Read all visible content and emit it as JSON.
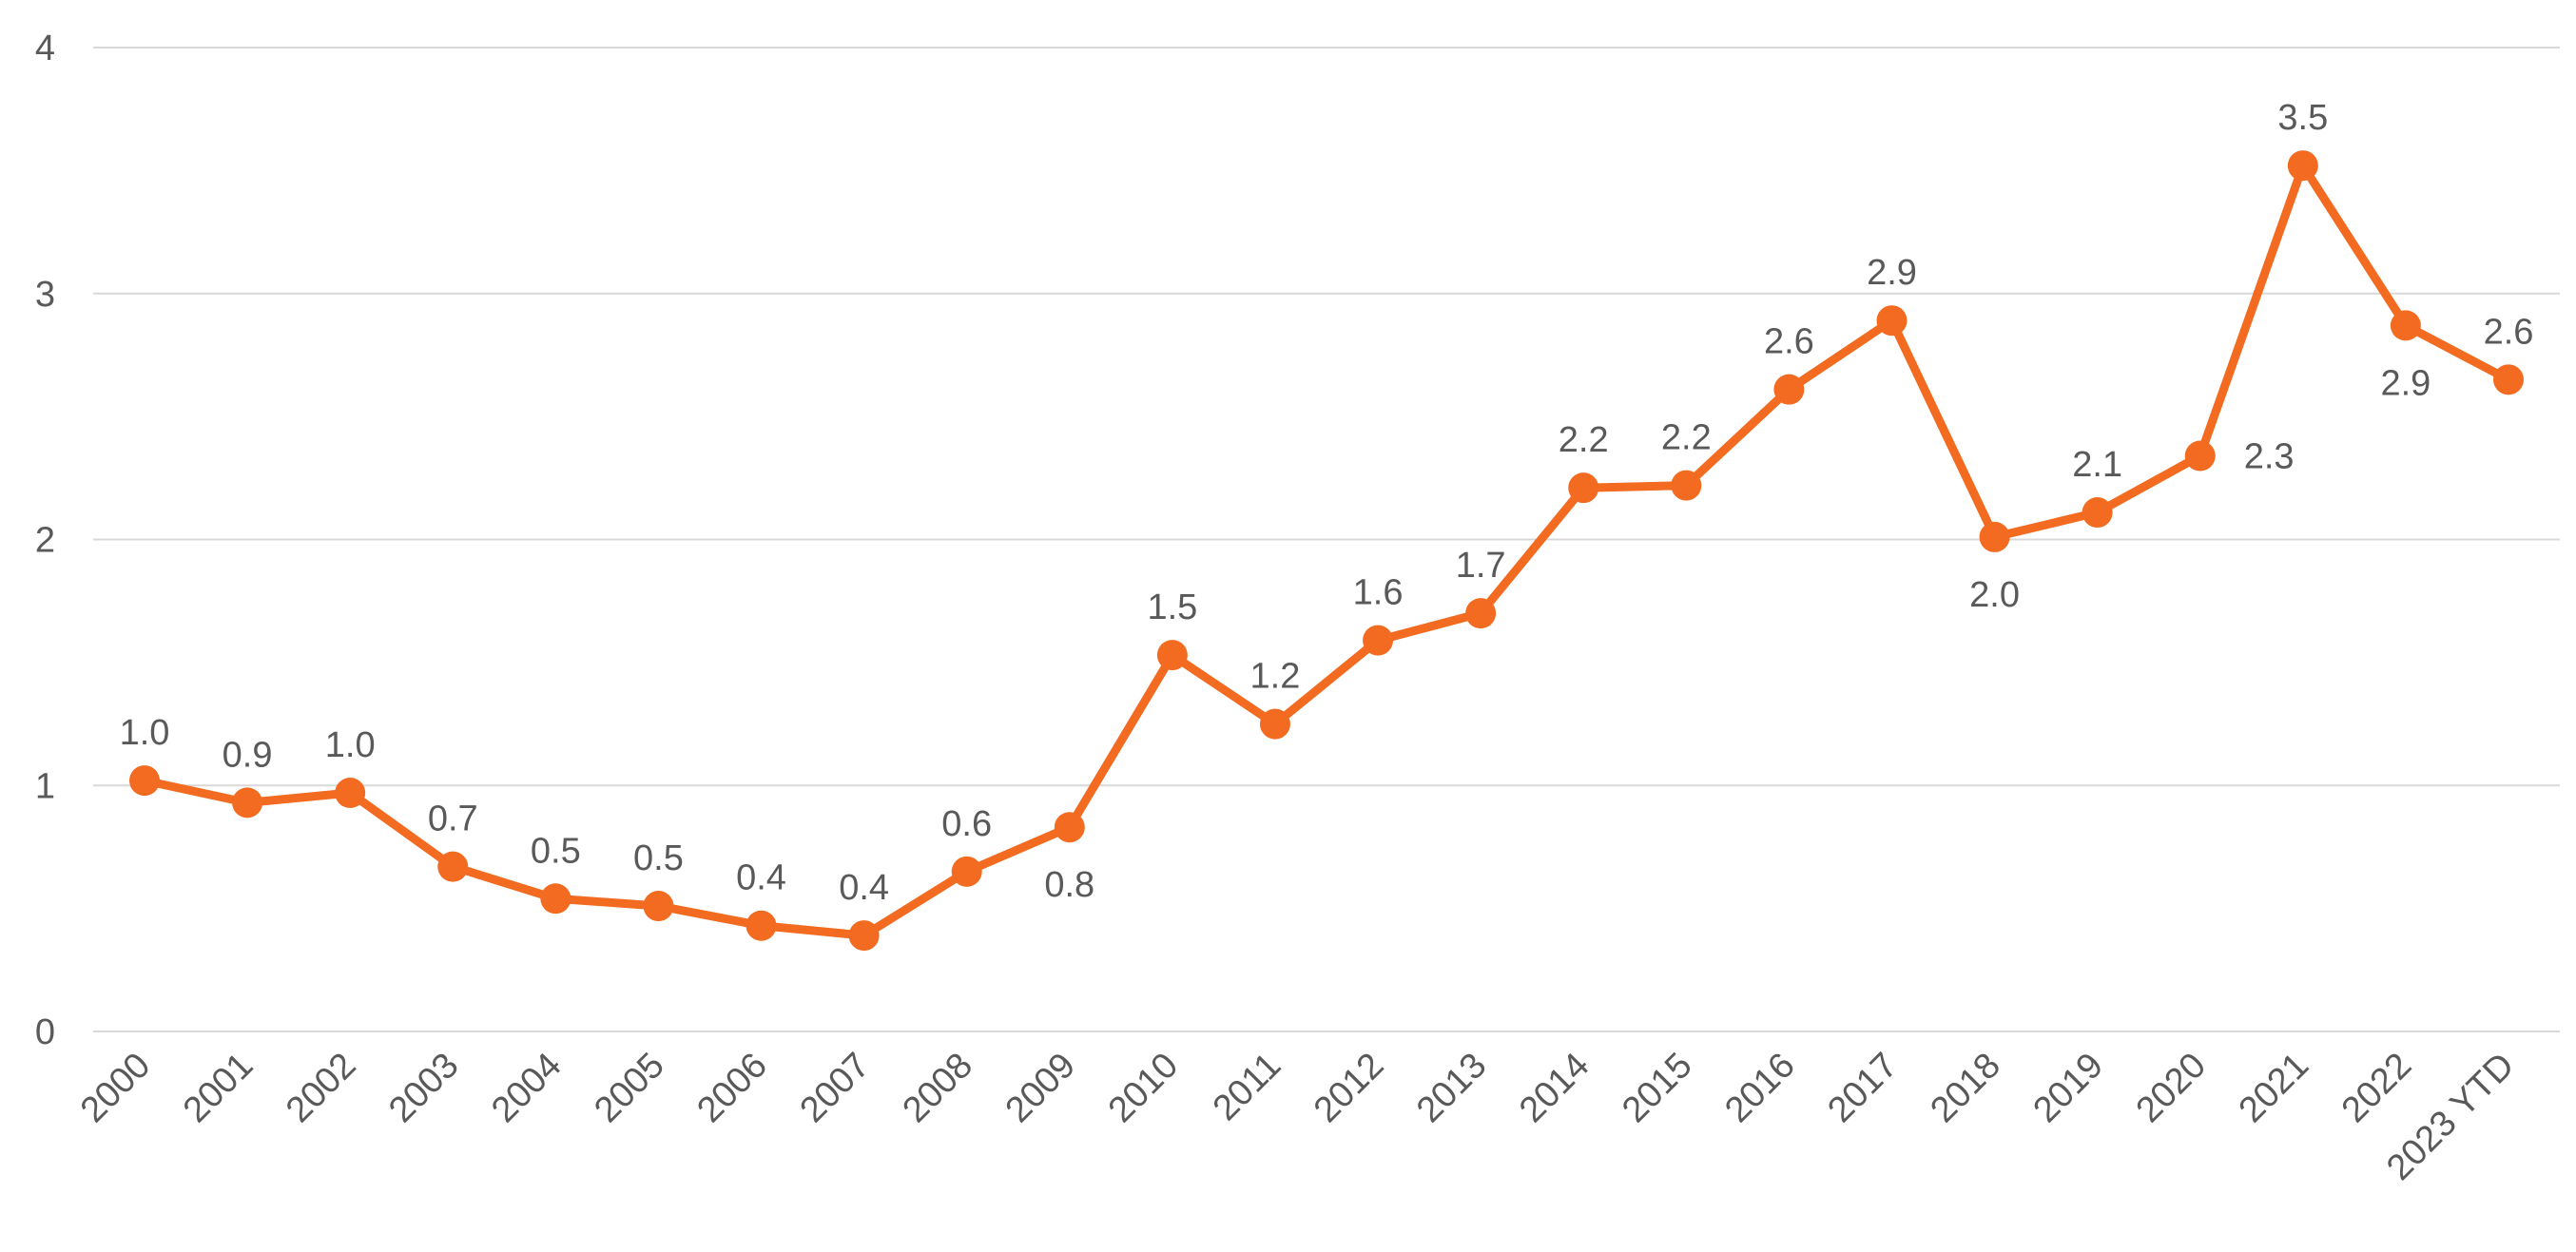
{
  "chart_data": {
    "type": "line",
    "title": "",
    "xlabel": "",
    "ylabel": "",
    "categories": [
      "2000",
      "2001",
      "2002",
      "2003",
      "2004",
      "2005",
      "2006",
      "2007",
      "2008",
      "2009",
      "2010",
      "2011",
      "2012",
      "2013",
      "2014",
      "2015",
      "2016",
      "2017",
      "2018",
      "2019",
      "2020",
      "2021",
      "2022",
      "2023 YTD"
    ],
    "series": [
      {
        "values": [
          1.02,
          0.93,
          0.97,
          0.67,
          0.54,
          0.51,
          0.43,
          0.39,
          0.65,
          0.83,
          1.53,
          1.25,
          1.59,
          1.7,
          2.21,
          2.22,
          2.61,
          2.89,
          2.01,
          2.11,
          2.34,
          3.52,
          2.87,
          2.65
        ],
        "labels": [
          "1.0",
          "0.9",
          "1.0",
          "0.7",
          "0.5",
          "0.5",
          "0.4",
          "0.4",
          "0.6",
          "0.8",
          "1.5",
          "1.2",
          "1.6",
          "1.7",
          "2.2",
          "2.2",
          "2.6",
          "2.9",
          "2.0",
          "2.1",
          "2.3",
          "3.5",
          "2.9",
          "2.6"
        ],
        "label_positions": [
          "above",
          "above",
          "above",
          "above",
          "above",
          "above",
          "above",
          "above",
          "above",
          "below",
          "above",
          "above",
          "above",
          "above",
          "above",
          "above",
          "above",
          "above",
          "below",
          "above",
          "right",
          "above",
          "below",
          "above"
        ]
      }
    ],
    "ylim": [
      0,
      4
    ],
    "yticks": [
      "0",
      "1",
      "2",
      "3",
      "4"
    ],
    "grid": true,
    "legend": "none",
    "colors": {
      "line": "#F26B21",
      "grid": "#D9D9D9",
      "text": "#595959"
    }
  }
}
